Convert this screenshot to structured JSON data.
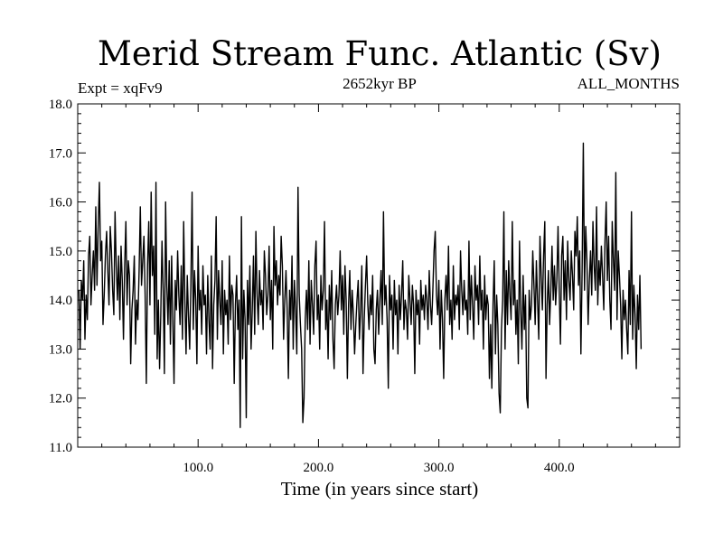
{
  "chart_data": {
    "type": "line",
    "title": "Merid Stream Func. Atlantic (Sv)",
    "subtitle_left": "Expt = xqFv9",
    "subtitle_center": "2652kyr BP",
    "subtitle_right": "ALL_MONTHS",
    "xlabel": "Time (in years since start)",
    "ylabel": "",
    "xlim": [
      0,
      500
    ],
    "ylim": [
      11.0,
      18.0
    ],
    "x_tick_labels": [
      "100.0",
      "200.0",
      "300.0",
      "400.0"
    ],
    "y_tick_labels": [
      "11.0",
      "12.0",
      "13.0",
      "14.0",
      "15.0",
      "16.0",
      "17.0",
      "18.0"
    ],
    "grid": false,
    "line_color": "#000000",
    "series": [
      {
        "x_start": 1,
        "x_step": 1,
        "values": [
          14.2,
          13.0,
          14.4,
          14.0,
          14.8,
          13.2,
          14.1,
          13.6,
          14.9,
          15.3,
          13.9,
          14.5,
          15.0,
          14.2,
          15.9,
          14.3,
          15.5,
          16.4,
          14.8,
          15.2,
          13.5,
          14.1,
          14.9,
          15.4,
          14.6,
          13.9,
          15.5,
          15.0,
          14.2,
          13.7,
          15.8,
          14.7,
          14.0,
          14.9,
          13.6,
          15.1,
          14.4,
          13.2,
          14.7,
          15.6,
          13.9,
          14.8,
          14.5,
          12.7,
          13.8,
          14.2,
          14.9,
          13.1,
          14.0,
          13.6,
          14.6,
          15.9,
          14.3,
          14.8,
          15.3,
          14.1,
          12.3,
          14.7,
          15.6,
          13.9,
          16.2,
          14.5,
          15.1,
          13.3,
          16.4,
          12.8,
          14.0,
          12.6,
          13.7,
          15.2,
          14.2,
          12.5,
          16.0,
          14.3,
          13.5,
          14.8,
          13.1,
          14.9,
          13.6,
          12.3,
          14.4,
          13.8,
          15.0,
          14.1,
          13.5,
          14.7,
          13.2,
          15.6,
          14.0,
          12.9,
          14.5,
          13.7,
          13.0,
          14.3,
          16.2,
          13.4,
          14.6,
          14.0,
          12.7,
          15.1,
          13.8,
          14.2,
          13.3,
          14.7,
          13.9,
          14.1,
          12.9,
          14.5,
          13.6,
          13.0,
          14.9,
          12.6,
          13.9,
          14.4,
          15.7,
          13.2,
          14.6,
          14.0,
          13.5,
          14.8,
          12.9,
          14.2,
          13.7,
          14.0,
          13.1,
          14.9,
          13.6,
          14.3,
          14.1,
          12.3,
          13.9,
          14.5,
          13.4,
          14.0,
          11.4,
          15.7,
          12.8,
          14.2,
          13.6,
          11.6,
          14.4,
          13.5,
          14.7,
          13.0,
          13.8,
          14.9,
          13.3,
          15.4,
          14.1,
          13.5,
          14.6,
          13.9,
          14.2,
          13.4,
          15.0,
          14.5,
          13.7,
          14.1,
          15.1,
          13.6,
          14.4,
          13.0,
          15.5,
          14.3,
          14.8,
          13.9,
          14.5,
          14.1,
          15.3,
          14.7,
          13.2,
          14.0,
          14.6,
          13.8,
          12.4,
          14.2,
          13.6,
          14.9,
          13.0,
          14.4,
          13.8,
          12.9,
          16.3,
          14.1,
          13.5,
          13.0,
          11.5,
          12.0,
          13.6,
          14.2,
          13.4,
          14.8,
          13.1,
          14.4,
          13.9,
          13.3,
          14.7,
          15.2,
          13.6,
          14.1,
          13.0,
          14.5,
          13.8,
          14.2,
          15.6,
          13.4,
          14.0,
          12.8,
          14.3,
          13.6,
          14.6,
          13.2,
          12.6,
          13.9,
          14.3,
          13.7,
          14.1,
          15.0,
          13.8,
          14.5,
          13.3,
          14.7,
          14.0,
          12.4,
          13.9,
          14.6,
          13.4,
          14.2,
          13.7,
          12.9,
          13.5,
          14.0,
          14.4,
          13.2,
          13.8,
          14.7,
          12.5,
          13.6,
          14.3,
          14.9,
          13.9,
          13.4,
          14.1,
          13.7,
          14.5,
          13.0,
          12.7,
          13.8,
          14.2,
          13.3,
          14.0,
          14.6,
          13.5,
          15.8,
          13.9,
          14.3,
          13.6,
          12.2,
          14.5,
          13.8,
          14.1,
          13.0,
          14.4,
          13.7,
          14.0,
          12.9,
          14.3,
          13.6,
          14.1,
          14.8,
          13.4,
          14.0,
          13.8,
          13.2,
          14.5,
          14.0,
          13.5,
          14.3,
          13.9,
          12.5,
          14.2,
          13.7,
          14.0,
          13.1,
          14.4,
          13.8,
          14.1,
          13.6,
          14.3,
          14.0,
          13.4,
          14.6,
          13.9,
          13.5,
          14.2,
          15.0,
          15.4,
          14.1,
          13.7,
          14.4,
          13.0,
          14.2,
          13.6,
          12.4,
          14.0,
          14.5,
          13.8,
          15.1,
          13.5,
          14.0,
          13.2,
          14.7,
          13.6,
          14.1,
          13.9,
          14.3,
          13.4,
          15.0,
          14.2,
          13.7,
          14.4,
          13.8,
          14.0,
          13.3,
          15.2,
          13.6,
          14.5,
          13.9,
          13.2,
          14.7,
          14.0,
          14.3,
          13.5,
          14.9,
          13.8,
          14.2,
          13.0,
          14.5,
          13.6,
          14.1,
          13.9,
          12.4,
          13.5,
          12.2,
          13.9,
          14.8,
          12.9,
          14.1,
          13.5,
          12.1,
          11.7,
          13.4,
          14.0,
          15.8,
          13.0,
          14.6,
          13.5,
          14.8,
          14.1,
          13.6,
          15.6,
          13.9,
          14.4,
          13.3,
          14.0,
          12.7,
          15.2,
          13.8,
          13.0,
          14.5,
          13.4,
          14.1,
          12.0,
          11.8,
          14.2,
          13.6,
          13.9,
          15.0,
          14.3,
          13.5,
          14.8,
          14.0,
          13.2,
          15.3,
          14.5,
          13.8,
          14.9,
          15.6,
          12.4,
          13.9,
          14.6,
          13.5,
          14.2,
          15.1,
          14.0,
          14.7,
          13.9,
          14.4,
          15.5,
          14.2,
          13.1,
          14.9,
          15.3,
          14.0,
          14.8,
          13.6,
          15.2,
          14.4,
          14.0,
          15.0,
          14.5,
          13.8,
          15.4,
          14.9,
          15.7,
          14.3,
          15.0,
          12.9,
          14.6,
          17.2,
          14.2,
          15.5,
          14.8,
          13.5,
          14.4,
          15.0,
          14.1,
          15.6,
          14.7,
          14.2,
          15.9,
          13.9,
          14.8,
          14.3,
          15.1,
          14.5,
          13.8,
          15.2,
          16.0,
          14.4,
          15.3,
          14.0,
          13.4,
          15.6,
          14.8,
          14.2,
          16.6,
          13.6,
          15.0,
          14.5,
          13.9,
          12.8,
          14.2,
          13.6,
          14.0,
          13.4,
          12.9,
          14.6,
          13.5,
          15.8,
          13.2,
          14.3,
          13.7,
          12.6,
          14.1,
          13.4,
          14.5,
          13.0
        ]
      }
    ]
  }
}
